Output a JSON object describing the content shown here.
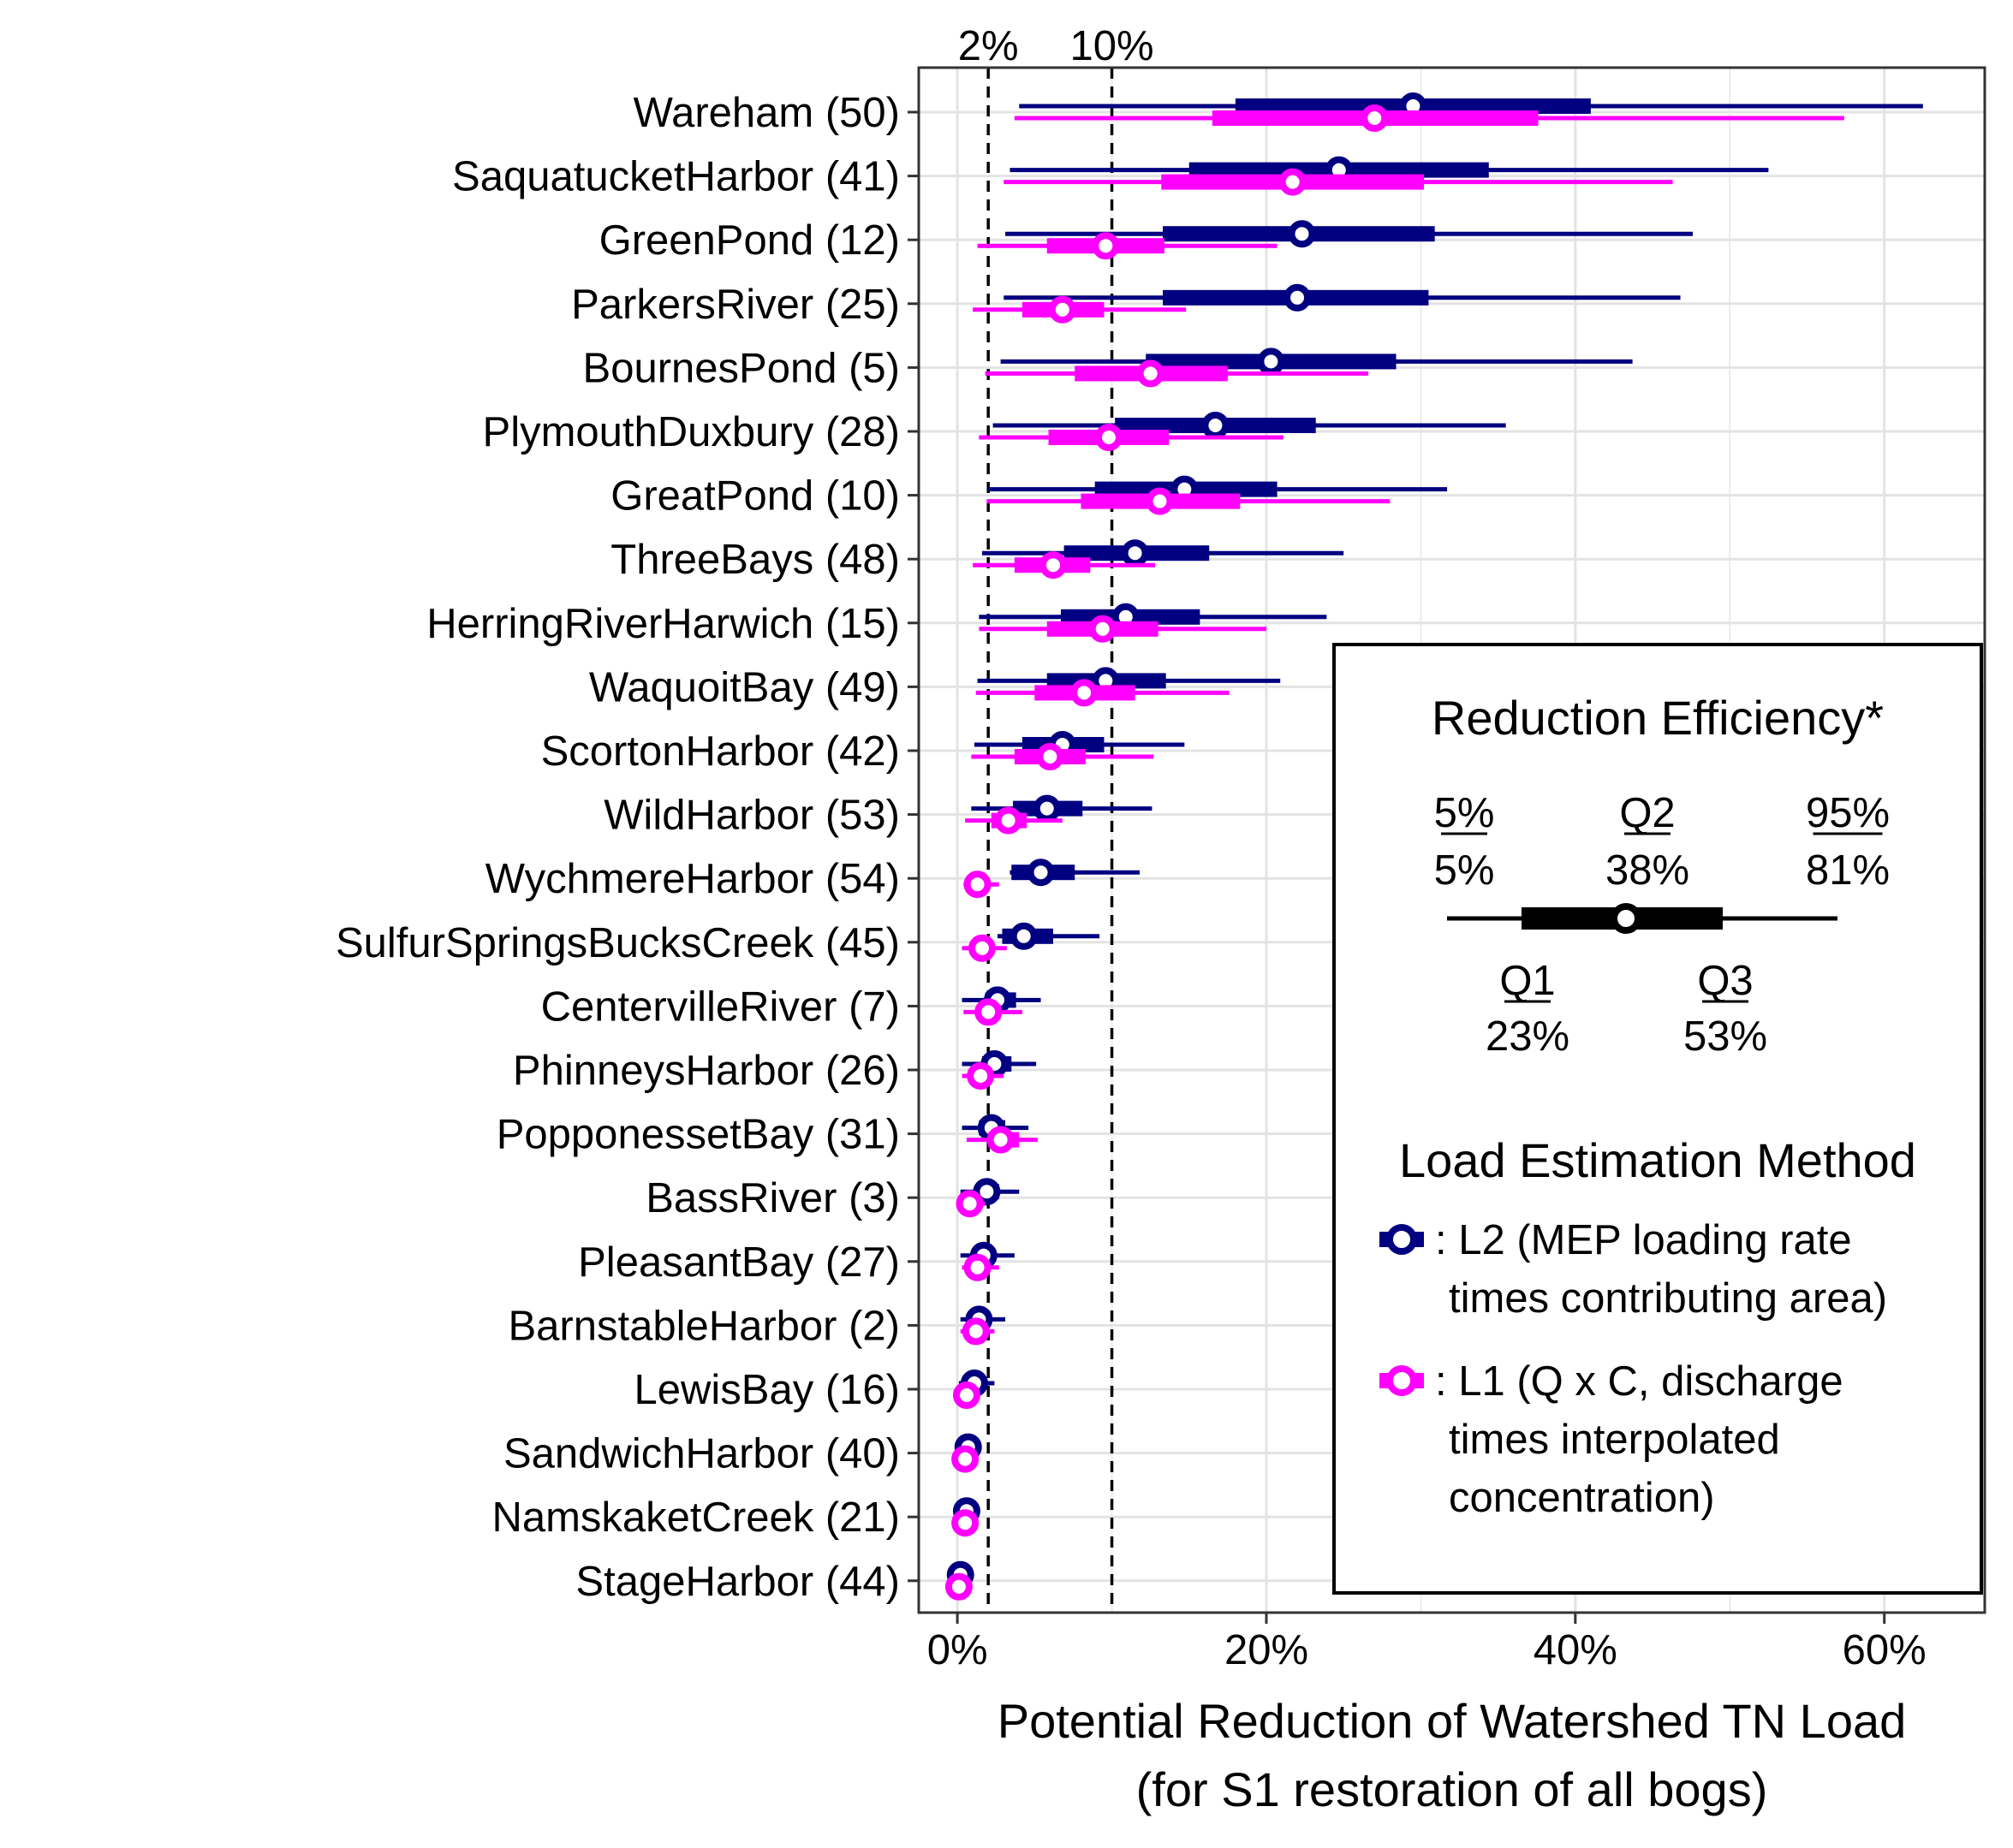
{
  "chart_data": {
    "type": "boxplot-horizontal",
    "title": "",
    "xlabel_lines": [
      "Potential Reduction of Watershed TN Load",
      "(for S1 restoration of all bogs)"
    ],
    "ylabel": "",
    "xlim": [
      -0.025,
      0.665
    ],
    "x_ticks": [
      0,
      0.2,
      0.4,
      0.6
    ],
    "x_tick_labels": [
      "0%",
      "20%",
      "40%",
      "60%"
    ],
    "grid": true,
    "reference_lines": [
      {
        "value": 0.02,
        "label": "2%"
      },
      {
        "value": 0.1,
        "label": "10%"
      }
    ],
    "categories": [
      "Wareham (50)",
      "SaquatucketHarbor (41)",
      "GreenPond (12)",
      "ParkersRiver (25)",
      "BournesPond (5)",
      "PlymouthDuxbury (28)",
      "GreatPond (10)",
      "ThreeBays (48)",
      "HerringRiverHarwich (15)",
      "WaquoitBay (49)",
      "ScortonHarbor (42)",
      "WildHarbor (53)",
      "WychmereHarbor (54)",
      "SulfurSpringsBucksCreek (45)",
      "CentervilleRiver (7)",
      "PhinneysHarbor (26)",
      "PopponessetBay (31)",
      "BassRiver (3)",
      "PleasantBay (27)",
      "BarnstableHarbor (2)",
      "LewisBay (16)",
      "SandwichHarbor (40)",
      "NamskaketCreek (21)",
      "StageHarbor (44)"
    ],
    "series": [
      {
        "name": ": L2 (MEP loading rate times contributing area)",
        "color": "#000080",
        "stats": [
          {
            "p5": 0.04,
            "q1": 0.18,
            "q2": 0.295,
            "q3": 0.41,
            "p95": 0.625
          },
          {
            "p5": 0.034,
            "q1": 0.15,
            "q2": 0.247,
            "q3": 0.344,
            "p95": 0.525
          },
          {
            "p5": 0.031,
            "q1": 0.133,
            "q2": 0.223,
            "q3": 0.309,
            "p95": 0.476
          },
          {
            "p5": 0.03,
            "q1": 0.133,
            "q2": 0.22,
            "q3": 0.305,
            "p95": 0.468
          },
          {
            "p5": 0.028,
            "q1": 0.122,
            "q2": 0.203,
            "q3": 0.284,
            "p95": 0.437
          },
          {
            "p5": 0.023,
            "q1": 0.102,
            "q2": 0.167,
            "q3": 0.232,
            "p95": 0.355
          },
          {
            "p5": 0.02,
            "q1": 0.089,
            "q2": 0.147,
            "q3": 0.207,
            "p95": 0.317
          },
          {
            "p5": 0.016,
            "q1": 0.069,
            "q2": 0.115,
            "q3": 0.163,
            "p95": 0.25
          },
          {
            "p5": 0.014,
            "q1": 0.067,
            "q2": 0.109,
            "q3": 0.157,
            "p95": 0.239
          },
          {
            "p5": 0.013,
            "q1": 0.058,
            "q2": 0.096,
            "q3": 0.135,
            "p95": 0.209
          },
          {
            "p5": 0.011,
            "q1": 0.042,
            "q2": 0.068,
            "q3": 0.095,
            "p95": 0.147
          },
          {
            "p5": 0.009,
            "q1": 0.036,
            "q2": 0.058,
            "q3": 0.081,
            "p95": 0.126
          },
          {
            "p5": 0.034,
            "q1": 0.035,
            "q2": 0.054,
            "q3": 0.076,
            "p95": 0.118
          },
          {
            "p5": 0.026,
            "q1": 0.029,
            "q2": 0.043,
            "q3": 0.062,
            "p95": 0.092
          },
          {
            "p5": 0.003,
            "q1": 0.018,
            "q2": 0.026,
            "q3": 0.038,
            "p95": 0.054
          },
          {
            "p5": 0.003,
            "q1": 0.016,
            "q2": 0.024,
            "q3": 0.035,
            "p95": 0.051
          },
          {
            "p5": 0.003,
            "q1": 0.014,
            "q2": 0.022,
            "q3": 0.031,
            "p95": 0.046
          },
          {
            "p5": 0.002,
            "q1": 0.012,
            "q2": 0.019,
            "q3": 0.027,
            "p95": 0.04
          },
          {
            "p5": 0.002,
            "q1": 0.01,
            "q2": 0.017,
            "q3": 0.024,
            "p95": 0.037
          },
          {
            "p5": 0.002,
            "q1": 0.008,
            "q2": 0.014,
            "q3": 0.02,
            "p95": 0.031
          },
          {
            "p5": 0.001,
            "q1": 0.007,
            "q2": 0.011,
            "q3": 0.016,
            "p95": 0.024
          },
          {
            "p5": 0.001,
            "q1": 0.004,
            "q2": 0.007,
            "q3": 0.01,
            "p95": 0.015
          },
          {
            "p5": 0.001,
            "q1": 0.003,
            "q2": 0.006,
            "q3": 0.008,
            "p95": 0.013
          },
          {
            "p5": 0.0,
            "q1": 0.001,
            "q2": 0.002,
            "q3": 0.003,
            "p95": 0.005
          }
        ]
      },
      {
        "name": ": L1 (Q x C, discharge times interpolated concentration)",
        "color": "#ff00ff",
        "stats": [
          {
            "p5": 0.037,
            "q1": 0.165,
            "q2": 0.27,
            "q3": 0.376,
            "p95": 0.574
          },
          {
            "p5": 0.03,
            "q1": 0.132,
            "q2": 0.217,
            "q3": 0.302,
            "p95": 0.463
          },
          {
            "p5": 0.013,
            "q1": 0.058,
            "q2": 0.096,
            "q3": 0.134,
            "p95": 0.207
          },
          {
            "p5": 0.01,
            "q1": 0.042,
            "q2": 0.068,
            "q3": 0.095,
            "p95": 0.148
          },
          {
            "p5": 0.018,
            "q1": 0.076,
            "q2": 0.125,
            "q3": 0.175,
            "p95": 0.266
          },
          {
            "p5": 0.014,
            "q1": 0.059,
            "q2": 0.098,
            "q3": 0.137,
            "p95": 0.211
          },
          {
            "p5": 0.019,
            "q1": 0.08,
            "q2": 0.131,
            "q3": 0.183,
            "p95": 0.28
          },
          {
            "p5": 0.01,
            "q1": 0.037,
            "q2": 0.062,
            "q3": 0.086,
            "p95": 0.128
          },
          {
            "p5": 0.014,
            "q1": 0.058,
            "q2": 0.094,
            "q3": 0.13,
            "p95": 0.2
          },
          {
            "p5": 0.012,
            "q1": 0.05,
            "q2": 0.082,
            "q3": 0.115,
            "p95": 0.176
          },
          {
            "p5": 0.009,
            "q1": 0.037,
            "q2": 0.06,
            "q3": 0.083,
            "p95": 0.127
          },
          {
            "p5": 0.005,
            "q1": 0.022,
            "q2": 0.033,
            "q3": 0.045,
            "p95": 0.068
          },
          {
            "p5": 0.004,
            "q1": 0.011,
            "q2": 0.013,
            "q3": 0.018,
            "p95": 0.027
          },
          {
            "p5": 0.003,
            "q1": 0.012,
            "q2": 0.016,
            "q3": 0.021,
            "p95": 0.032
          },
          {
            "p5": 0.004,
            "q1": 0.014,
            "q2": 0.02,
            "q3": 0.028,
            "p95": 0.042
          },
          {
            "p5": 0.003,
            "q1": 0.011,
            "q2": 0.015,
            "q3": 0.021,
            "p95": 0.03
          },
          {
            "p5": 0.006,
            "q1": 0.02,
            "q2": 0.028,
            "q3": 0.04,
            "p95": 0.052
          },
          {
            "p5": 0.002,
            "q1": 0.006,
            "q2": 0.008,
            "q3": 0.012,
            "p95": 0.018
          },
          {
            "p5": 0.003,
            "q1": 0.009,
            "q2": 0.013,
            "q3": 0.019,
            "p95": 0.027
          },
          {
            "p5": 0.002,
            "q1": 0.008,
            "q2": 0.012,
            "q3": 0.017,
            "p95": 0.024
          },
          {
            "p5": 0.001,
            "q1": 0.004,
            "q2": 0.006,
            "q3": 0.009,
            "p95": 0.013
          },
          {
            "p5": 0.001,
            "q1": 0.003,
            "q2": 0.005,
            "q3": 0.007,
            "p95": 0.01
          },
          {
            "p5": 0.001,
            "q1": 0.003,
            "q2": 0.005,
            "q3": 0.007,
            "p95": 0.01
          },
          {
            "p5": 0.0,
            "q1": 0.0,
            "q2": 0.001,
            "q3": 0.002,
            "p95": 0.003
          }
        ]
      }
    ],
    "legend": {
      "placement": "bottom-right inside",
      "efficiency_title": "Reduction Efficiency*",
      "efficiency_items": [
        {
          "label": "5%",
          "value": "5%"
        },
        {
          "label": "Q2",
          "value": "38%"
        },
        {
          "label": "95%",
          "value": "81%"
        },
        {
          "label": "Q1",
          "value": "23%"
        },
        {
          "label": "Q3",
          "value": "53%"
        }
      ],
      "method_title": "Load Estimation Method",
      "method_items": [
        {
          "lines": [
            ": L2 (MEP loading rate",
            "times contributing area)"
          ],
          "color": "#000080"
        },
        {
          "lines": [
            ": L1 (Q x C, discharge",
            "times interpolated",
            "concentration)"
          ],
          "color": "#ff00ff"
        }
      ]
    }
  }
}
